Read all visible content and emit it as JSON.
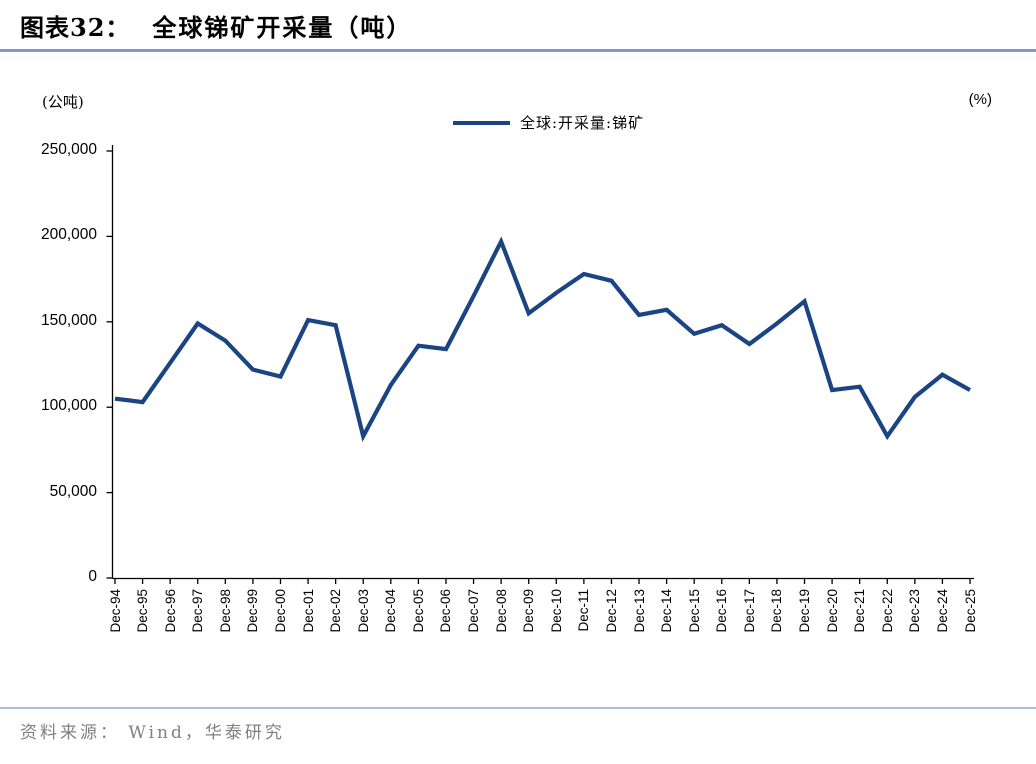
{
  "header": {
    "prefix": "图表32：",
    "title": "全球锑矿开采量（吨）"
  },
  "axes": {
    "left_unit": "(公吨)",
    "right_unit": "(%)"
  },
  "legend": {
    "label": "全球:开采量:锑矿"
  },
  "footer": {
    "source": "资料来源： Wind，华泰研究"
  },
  "colors": {
    "line": "#1B4482",
    "axis": "#000000",
    "title_rule": "#7E9BC4",
    "footer_rule": "#A9BFDA",
    "source_text": "#808080"
  },
  "chart_data": {
    "type": "line",
    "title": "全球锑矿开采量（吨）",
    "categories": [
      "Dec-94",
      "Dec-95",
      "Dec-96",
      "Dec-97",
      "Dec-98",
      "Dec-99",
      "Dec-00",
      "Dec-01",
      "Dec-02",
      "Dec-03",
      "Dec-04",
      "Dec-05",
      "Dec-06",
      "Dec-07",
      "Dec-08",
      "Dec-09",
      "Dec-10",
      "Dec-11",
      "Dec-12",
      "Dec-13",
      "Dec-14",
      "Dec-15",
      "Dec-16",
      "Dec-17",
      "Dec-18",
      "Dec-19",
      "Dec-20",
      "Dec-21",
      "Dec-22",
      "Dec-23",
      "Dec-24",
      "Dec-25"
    ],
    "series": [
      {
        "name": "全球:开采量:锑矿",
        "values": [
          105000,
          103000,
          126000,
          149000,
          139000,
          122000,
          118000,
          151000,
          148000,
          83000,
          113000,
          136000,
          134000,
          165000,
          197000,
          155000,
          167000,
          178000,
          174000,
          154000,
          157000,
          143000,
          148000,
          137000,
          149000,
          162000,
          110000,
          112000,
          83000,
          106000,
          119000,
          110000
        ]
      }
    ],
    "xlabel": "",
    "ylabel": "(公吨)",
    "ylabel_right": "(%)",
    "ylim": [
      0,
      250000
    ],
    "ytick_labels": [
      "0",
      "50,000",
      "100,000",
      "150,000",
      "200,000",
      "250,000"
    ],
    "grid": false,
    "legend_position": "top-center"
  }
}
